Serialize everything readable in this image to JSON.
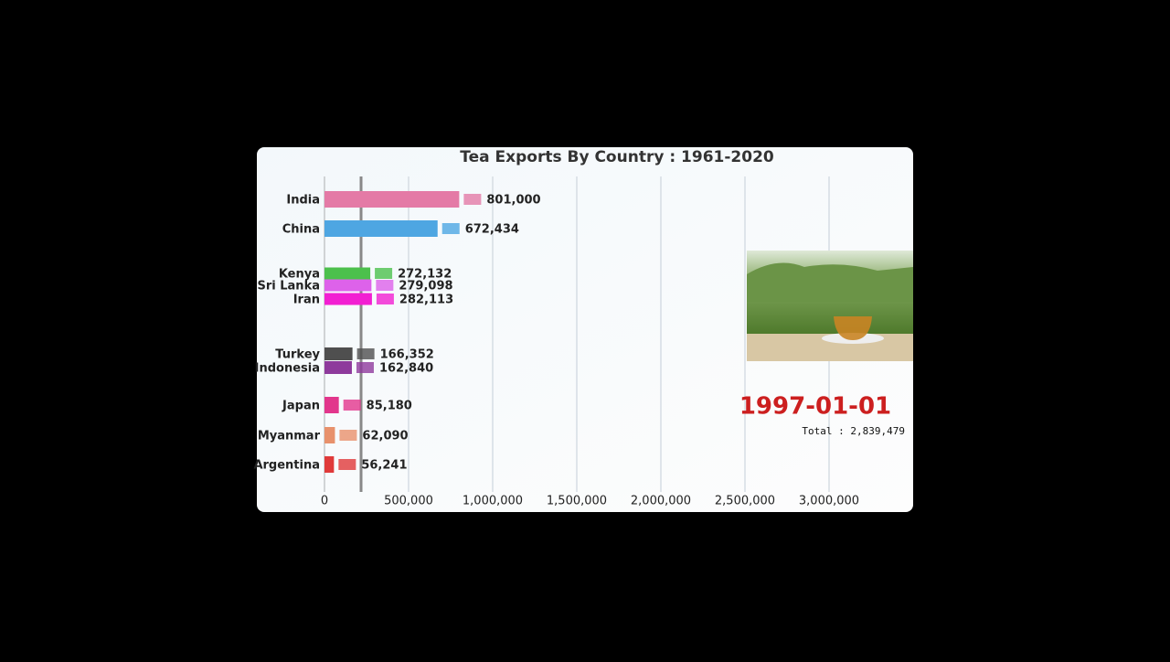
{
  "chart_data": {
    "type": "bar",
    "orientation": "horizontal",
    "title": "Tea Exports By Country : 1961-2020",
    "categories": [
      "India",
      "China",
      "Kenya",
      "Sri Lanka",
      "Iran",
      "Turkey",
      "Indonesia",
      "Japan",
      "Myanmar",
      "Argentina"
    ],
    "values": [
      801000,
      672434,
      272132,
      279098,
      282113,
      166352,
      162840,
      85180,
      62090,
      56241
    ],
    "value_labels": [
      "801,000",
      "672,434",
      "272,132",
      "279,098",
      "282,113",
      "166,352",
      "162,840",
      "85,180",
      "62,090",
      "56,241"
    ],
    "colors": [
      "#e47aa6",
      "#4ea6e2",
      "#4cc04c",
      "#dd62ea",
      "#f21fd2",
      "#4f4f4f",
      "#8e3a9c",
      "#e2368c",
      "#e8916c",
      "#e03a3a"
    ],
    "xlim": [
      0,
      3500000
    ],
    "xticks": [
      0,
      {
        "value": 500000,
        "label": "500,000"
      },
      {
        "value": 1000000,
        "label": "1,000,000"
      },
      {
        "value": 1500000,
        "label": "1,500,000"
      },
      {
        "value": 2000000,
        "label": "2,000,000"
      },
      {
        "value": 2500000,
        "label": "2,500,000"
      },
      {
        "value": 3000000,
        "label": "3,000,000"
      }
    ],
    "grid": true,
    "date": "1997-01-01",
    "total_label": "Total : 2,839,479"
  }
}
